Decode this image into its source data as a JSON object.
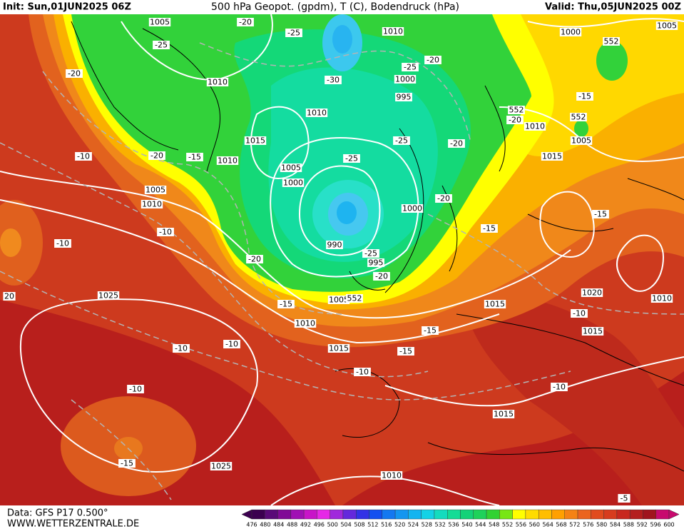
{
  "header": {
    "init": "Init: Sun,01JUN2025 06Z",
    "title": "500 hPa Geopot. (gpdm), T (C), Bodendruck (hPa)",
    "valid": "Valid: Thu,05JUN2025 00Z"
  },
  "map": {
    "labels": [
      "1005",
      "-20",
      "-25",
      "1010",
      "1000",
      "1005",
      "552",
      "-25",
      "-25",
      "-20",
      "-20",
      "1010",
      "-30",
      "1000",
      "995",
      "1010",
      "552",
      "-20",
      "1010",
      "-15",
      "552",
      "1015",
      "-25",
      "-20",
      "1005",
      "-10",
      "-20",
      "-15",
      "1010",
      "-25",
      "1015",
      "1005",
      "1000",
      "1005",
      "1010",
      "-20",
      "1000",
      "-15",
      "-10",
      "-15",
      "-10",
      "990",
      "-25",
      "995",
      "-20",
      "-20",
      "1025",
      "1005",
      "552",
      "20",
      "-15",
      "1015",
      "1020",
      "1010",
      "-10",
      "1010",
      "-15",
      "1015",
      "-10",
      "-10",
      "1015",
      "-15",
      "-10",
      "-10",
      "-10",
      "1015",
      "-15",
      "1025",
      "1010",
      "-5"
    ]
  },
  "legend": {
    "labels": [
      476,
      480,
      484,
      488,
      492,
      496,
      500,
      504,
      508,
      512,
      516,
      520,
      524,
      528,
      532,
      536,
      540,
      544,
      548,
      552,
      556,
      560,
      564,
      568,
      572,
      576,
      580,
      584,
      588,
      592,
      596,
      600
    ],
    "colors": [
      "#3c0050",
      "#5a0a78",
      "#800a96",
      "#a010b4",
      "#c814c8",
      "#e628e6",
      "#a028dc",
      "#6428dc",
      "#3232e6",
      "#1450f0",
      "#1478f0",
      "#1496f0",
      "#14b4f0",
      "#14d2e6",
      "#14dcbe",
      "#14dc96",
      "#14d278",
      "#1ed25a",
      "#32d232",
      "#78e614",
      "#ffff00",
      "#ffdc00",
      "#ffbe00",
      "#ffa000",
      "#f58214",
      "#eb641e",
      "#e14b1e",
      "#d73c1e",
      "#c8281e",
      "#b41e1e",
      "#a0141e",
      "#c80a6e"
    ]
  },
  "footer": {
    "data": "Data: GFS P17 0.500°",
    "site": "WWW.WETTERZENTRALE.DE"
  }
}
